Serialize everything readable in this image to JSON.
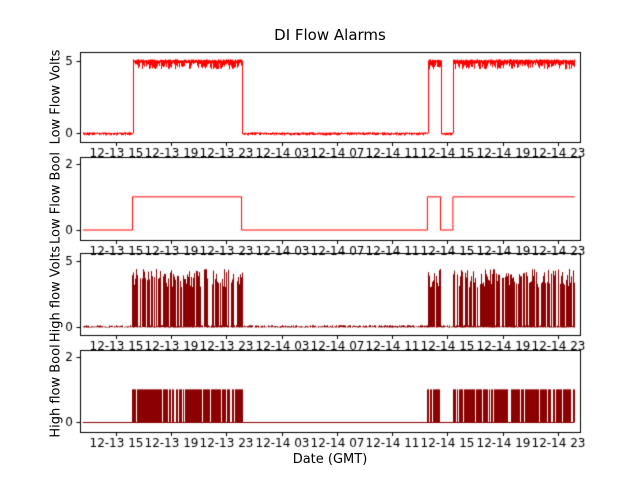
{
  "chart_data": {
    "type": "line",
    "title": "DI Flow Alarms",
    "xlabel": "Date (GMT)",
    "x_unit": "hours since 12-13 00:00 GMT",
    "xlim": [
      12.4,
      48.6
    ],
    "x_tick_hours": [
      15,
      19,
      23,
      27,
      31,
      35,
      39,
      43,
      47
    ],
    "x_tick_labels": [
      "12-13 15",
      "12-13 19",
      "12-13 23",
      "12-14 03",
      "12-14 07",
      "12-14 11",
      "12-14 15",
      "12-14 19",
      "12-14 23"
    ],
    "subplots": [
      {
        "name": "low-flow-volts",
        "ylabel": "Low Flow Volts",
        "color": "#ff0000",
        "style": "noisy_step",
        "ylim": [
          -0.6,
          5.6
        ],
        "yticks": [
          0,
          5
        ],
        "low_value": 0,
        "high_value": 5,
        "noise_low": 0.15,
        "noise_high": 0.6,
        "data_start": 12.6,
        "data_end": 48.2,
        "high_windows": [
          [
            16.2,
            24.1
          ],
          [
            37.55,
            38.5
          ],
          [
            39.4,
            48.2
          ]
        ]
      },
      {
        "name": "low-flow-bool",
        "ylabel": "Low Flow Bool",
        "color": "#ff0000",
        "style": "step",
        "ylim": [
          -0.3,
          2.2
        ],
        "yticks": [
          0,
          2
        ],
        "low_value": 0,
        "high_value": 1,
        "data_start": 12.6,
        "data_end": 48.2,
        "high_windows": [
          [
            16.2,
            24.1
          ],
          [
            37.55,
            38.5
          ],
          [
            39.4,
            48.2
          ]
        ]
      },
      {
        "name": "high-flow-volts",
        "ylabel": "High flow Volts",
        "color": "#8b0000",
        "style": "burst",
        "ylim": [
          -0.6,
          5.6
        ],
        "yticks": [
          0,
          5
        ],
        "baseline": 0,
        "baseline_noise": 0.15,
        "bar_min": 3.0,
        "bar_max": 4.4,
        "density": 0.72,
        "data_start": 12.6,
        "data_end": 48.2,
        "high_windows": [
          [
            16.2,
            24.1
          ],
          [
            37.55,
            38.5
          ],
          [
            39.4,
            48.2
          ]
        ]
      },
      {
        "name": "high-flow-bool",
        "ylabel": "High flow Bool",
        "color": "#8b0000",
        "style": "burst_bool",
        "ylim": [
          -0.3,
          2.2
        ],
        "yticks": [
          0,
          2
        ],
        "baseline": 0,
        "high_value": 1,
        "density": 0.84,
        "data_start": 12.6,
        "data_end": 48.2,
        "high_windows": [
          [
            16.2,
            24.1
          ],
          [
            37.55,
            38.5
          ],
          [
            39.4,
            48.2
          ]
        ]
      }
    ]
  }
}
